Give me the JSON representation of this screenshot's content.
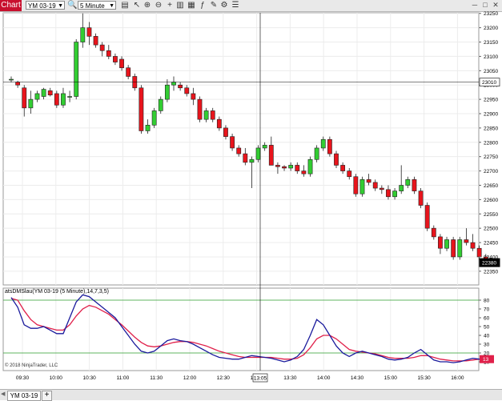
{
  "toolbar": {
    "chart_label": "Chart",
    "instrument": "YM 03-19",
    "period": "5 Minute",
    "icons": [
      "search-icon",
      "zoom-in-icon",
      "zoom-out-icon",
      "crosshair-icon",
      "chart-style-icon",
      "data-series-icon",
      "indicators-icon",
      "strategies-icon",
      "drawing-tools-icon",
      "properties-icon"
    ]
  },
  "window_controls": [
    "minimize-icon",
    "maximize-icon",
    "close-icon"
  ],
  "price_axis": {
    "labels": [
      "23250",
      "23200",
      "23150",
      "23100",
      "23050",
      "23000",
      "22950",
      "22900",
      "22850",
      "22800",
      "22750",
      "22700",
      "22650",
      "22600",
      "22550",
      "22500",
      "22450",
      "22400",
      "22350"
    ],
    "crosshair_label": "23010",
    "last_price_label": "22380"
  },
  "indicator": {
    "title": "atsDMSlau(YM 03-19 (5 Minute),14,7,3,5)",
    "axis_labels": [
      "80",
      "70",
      "60",
      "50",
      "40",
      "30",
      "20",
      "10"
    ],
    "value_label": "13",
    "upper_level": 80,
    "lower_level": 20,
    "colors": {
      "fast": "#1a1a9c",
      "slow": "#e0204a",
      "levels": "#2e9e2e"
    }
  },
  "time_axis": {
    "labels": [
      "09:30",
      "10:00",
      "10:30",
      "11:00",
      "11:30",
      "12:00",
      "12:30",
      "13:00",
      "13:30",
      "14:00",
      "14:30",
      "15:00",
      "15:30",
      "16:00"
    ],
    "crosshair_time": "13:05"
  },
  "copyright": "© 2018 NinjaTrader, LLC",
  "bottom_tab": {
    "label": "YM 03-19",
    "add_label": "+"
  },
  "chart_data": {
    "type": "candlestick",
    "bar_interval": "5 Minute",
    "ylim": [
      22330,
      23280
    ],
    "candles": [
      {
        "o": 23020,
        "h": 23030,
        "l": 23010,
        "c": 23020
      },
      {
        "o": 23010,
        "h": 23015,
        "l": 22990,
        "c": 23000
      },
      {
        "o": 22990,
        "h": 23000,
        "l": 22890,
        "c": 22920
      },
      {
        "o": 22920,
        "h": 22980,
        "l": 22900,
        "c": 22950
      },
      {
        "o": 22950,
        "h": 22980,
        "l": 22940,
        "c": 22970
      },
      {
        "o": 22960,
        "h": 22990,
        "l": 22950,
        "c": 22985
      },
      {
        "o": 22980,
        "h": 22990,
        "l": 22960,
        "c": 22965
      },
      {
        "o": 22970,
        "h": 22980,
        "l": 22920,
        "c": 22930
      },
      {
        "o": 22930,
        "h": 22990,
        "l": 22920,
        "c": 22970
      },
      {
        "o": 22960,
        "h": 22980,
        "l": 22940,
        "c": 22960
      },
      {
        "o": 22960,
        "h": 23160,
        "l": 22950,
        "c": 23150
      },
      {
        "o": 23150,
        "h": 23250,
        "l": 23130,
        "c": 23200
      },
      {
        "o": 23200,
        "h": 23220,
        "l": 23140,
        "c": 23170
      },
      {
        "o": 23170,
        "h": 23180,
        "l": 23130,
        "c": 23140
      },
      {
        "o": 23140,
        "h": 23150,
        "l": 23100,
        "c": 23120
      },
      {
        "o": 23120,
        "h": 23140,
        "l": 23090,
        "c": 23100
      },
      {
        "o": 23100,
        "h": 23110,
        "l": 23070,
        "c": 23080
      },
      {
        "o": 23090,
        "h": 23100,
        "l": 23050,
        "c": 23060
      },
      {
        "o": 23060,
        "h": 23070,
        "l": 23020,
        "c": 23030
      },
      {
        "o": 23030,
        "h": 23040,
        "l": 22980,
        "c": 22990
      },
      {
        "o": 22990,
        "h": 23000,
        "l": 22830,
        "c": 22840
      },
      {
        "o": 22840,
        "h": 22880,
        "l": 22830,
        "c": 22860
      },
      {
        "o": 22860,
        "h": 22920,
        "l": 22850,
        "c": 22910
      },
      {
        "o": 22910,
        "h": 22960,
        "l": 22900,
        "c": 22950
      },
      {
        "o": 22950,
        "h": 23020,
        "l": 22940,
        "c": 23000
      },
      {
        "o": 23000,
        "h": 23030,
        "l": 22980,
        "c": 23010
      },
      {
        "o": 23000,
        "h": 23010,
        "l": 22980,
        "c": 22990
      },
      {
        "o": 22990,
        "h": 23000,
        "l": 22960,
        "c": 22970
      },
      {
        "o": 22970,
        "h": 22990,
        "l": 22930,
        "c": 22950
      },
      {
        "o": 22950,
        "h": 22960,
        "l": 22870,
        "c": 22880
      },
      {
        "o": 22880,
        "h": 22920,
        "l": 22870,
        "c": 22910
      },
      {
        "o": 22910,
        "h": 22920,
        "l": 22870,
        "c": 22880
      },
      {
        "o": 22880,
        "h": 22890,
        "l": 22840,
        "c": 22850
      },
      {
        "o": 22850,
        "h": 22860,
        "l": 22810,
        "c": 22820
      },
      {
        "o": 22820,
        "h": 22830,
        "l": 22770,
        "c": 22780
      },
      {
        "o": 22780,
        "h": 22790,
        "l": 22750,
        "c": 22760
      },
      {
        "o": 22760,
        "h": 22780,
        "l": 22720,
        "c": 22730
      },
      {
        "o": 22730,
        "h": 22750,
        "l": 22640,
        "c": 22740
      },
      {
        "o": 22740,
        "h": 22790,
        "l": 22730,
        "c": 22780
      },
      {
        "o": 22780,
        "h": 22800,
        "l": 22770,
        "c": 22790
      },
      {
        "o": 22790,
        "h": 22820,
        "l": 22720,
        "c": 22720
      },
      {
        "o": 22720,
        "h": 22730,
        "l": 22690,
        "c": 22715
      },
      {
        "o": 22715,
        "h": 22720,
        "l": 22700,
        "c": 22710
      },
      {
        "o": 22710,
        "h": 22730,
        "l": 22700,
        "c": 22720
      },
      {
        "o": 22720,
        "h": 22730,
        "l": 22690,
        "c": 22700
      },
      {
        "o": 22700,
        "h": 22720,
        "l": 22680,
        "c": 22690
      },
      {
        "o": 22690,
        "h": 22750,
        "l": 22680,
        "c": 22740
      },
      {
        "o": 22740,
        "h": 22790,
        "l": 22730,
        "c": 22780
      },
      {
        "o": 22780,
        "h": 22820,
        "l": 22770,
        "c": 22810
      },
      {
        "o": 22810,
        "h": 22820,
        "l": 22750,
        "c": 22760
      },
      {
        "o": 22760,
        "h": 22770,
        "l": 22710,
        "c": 22720
      },
      {
        "o": 22720,
        "h": 22730,
        "l": 22690,
        "c": 22700
      },
      {
        "o": 22700,
        "h": 22710,
        "l": 22670,
        "c": 22680
      },
      {
        "o": 22680,
        "h": 22690,
        "l": 22610,
        "c": 22620
      },
      {
        "o": 22620,
        "h": 22680,
        "l": 22610,
        "c": 22670
      },
      {
        "o": 22670,
        "h": 22690,
        "l": 22650,
        "c": 22660
      },
      {
        "o": 22660,
        "h": 22670,
        "l": 22630,
        "c": 22640
      },
      {
        "o": 22640,
        "h": 22650,
        "l": 22620,
        "c": 22635
      },
      {
        "o": 22635,
        "h": 22650,
        "l": 22600,
        "c": 22610
      },
      {
        "o": 22610,
        "h": 22640,
        "l": 22600,
        "c": 22630
      },
      {
        "o": 22630,
        "h": 22720,
        "l": 22620,
        "c": 22650
      },
      {
        "o": 22650,
        "h": 22680,
        "l": 22640,
        "c": 22670
      },
      {
        "o": 22670,
        "h": 22680,
        "l": 22620,
        "c": 22630
      },
      {
        "o": 22630,
        "h": 22640,
        "l": 22570,
        "c": 22580
      },
      {
        "o": 22580,
        "h": 22590,
        "l": 22490,
        "c": 22500
      },
      {
        "o": 22500,
        "h": 22510,
        "l": 22460,
        "c": 22470
      },
      {
        "o": 22470,
        "h": 22480,
        "l": 22410,
        "c": 22430
      },
      {
        "o": 22430,
        "h": 22470,
        "l": 22420,
        "c": 22460
      },
      {
        "o": 22460,
        "h": 22470,
        "l": 22390,
        "c": 22400
      },
      {
        "o": 22400,
        "h": 22470,
        "l": 22390,
        "c": 22460
      },
      {
        "o": 22460,
        "h": 22500,
        "l": 22440,
        "c": 22450
      },
      {
        "o": 22450,
        "h": 22480,
        "l": 22420,
        "c": 22430
      },
      {
        "o": 22430,
        "h": 22440,
        "l": 22390,
        "c": 22400
      },
      {
        "o": 22400,
        "h": 22410,
        "l": 22370,
        "c": 22380
      }
    ],
    "oscillator": {
      "ylim": [
        0,
        90
      ],
      "fast": [
        83,
        72,
        52,
        48,
        48,
        50,
        46,
        42,
        42,
        60,
        78,
        86,
        84,
        78,
        72,
        66,
        60,
        50,
        40,
        30,
        22,
        20,
        22,
        28,
        34,
        36,
        34,
        33,
        30,
        26,
        22,
        18,
        15,
        14,
        13,
        13,
        15,
        17,
        16,
        15,
        14,
        12,
        10,
        12,
        16,
        24,
        40,
        58,
        52,
        40,
        28,
        20,
        16,
        20,
        22,
        20,
        18,
        16,
        13,
        12,
        13,
        15,
        20,
        24,
        18,
        12,
        10,
        10,
        9,
        10,
        12,
        14,
        13,
        11
      ],
      "slow": [
        82,
        80,
        68,
        58,
        52,
        50,
        48,
        46,
        46,
        52,
        62,
        70,
        74,
        72,
        68,
        64,
        58,
        52,
        45,
        38,
        32,
        28,
        27,
        28,
        30,
        32,
        33,
        33,
        32,
        30,
        28,
        25,
        22,
        20,
        18,
        16,
        15,
        15,
        15,
        15,
        15,
        14,
        13,
        13,
        14,
        18,
        26,
        36,
        40,
        40,
        36,
        30,
        24,
        22,
        21,
        20,
        19,
        17,
        15,
        14,
        14,
        14,
        15,
        17,
        17,
        15,
        13,
        12,
        11,
        11,
        11,
        12,
        13,
        12
      ]
    }
  }
}
